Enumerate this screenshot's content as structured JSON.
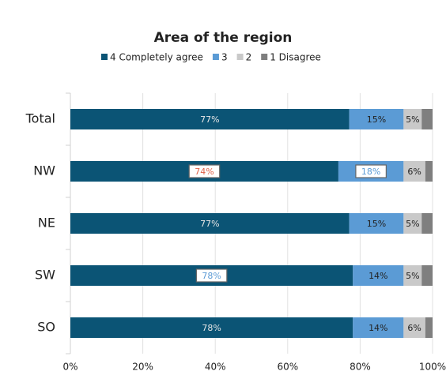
{
  "chart_data": {
    "type": "stacked-barh",
    "title": "Area of the region",
    "categories": [
      "Total",
      "NW",
      "NE",
      "SW",
      "SO"
    ],
    "series": [
      {
        "name": "4 Completely agree",
        "color": "#0b5475",
        "values": [
          77,
          74,
          77,
          78,
          78
        ],
        "value_labels": [
          "77%",
          "74%",
          "77%",
          "78%",
          "78%"
        ],
        "label_colors": [
          "#e6e6e6",
          "#e0624a",
          "#e6e6e6",
          "#5b9bd5",
          "#e6e6e6"
        ],
        "label_boxed": [
          false,
          true,
          false,
          true,
          false
        ]
      },
      {
        "name": "3",
        "color": "#5b9bd5",
        "values": [
          15,
          18,
          15,
          14,
          14
        ],
        "value_labels": [
          "15%",
          "18%",
          "15%",
          "14%",
          "14%"
        ],
        "label_colors": [
          "#222222",
          "#5b9bd5",
          "#222222",
          "#222222",
          "#222222"
        ],
        "label_boxed": [
          false,
          true,
          false,
          false,
          false
        ]
      },
      {
        "name": "2",
        "color": "#c9c9c9",
        "values": [
          5,
          6,
          5,
          5,
          6
        ],
        "value_labels": [
          "5%",
          "6%",
          "5%",
          "5%",
          "6%"
        ],
        "label_colors": [
          "#222222",
          "#222222",
          "#222222",
          "#222222",
          "#222222"
        ],
        "label_boxed": [
          false,
          false,
          false,
          false,
          false
        ]
      },
      {
        "name": "1 Disagree",
        "color": "#7f7f7f",
        "values": [
          3,
          2,
          3,
          3,
          2
        ]
      }
    ],
    "xlim": [
      0,
      100
    ],
    "xticks": [
      {
        "value": 0,
        "label": "0%"
      },
      {
        "value": 20,
        "label": "20%"
      },
      {
        "value": 40,
        "label": "40%"
      },
      {
        "value": 60,
        "label": "60%"
      },
      {
        "value": 80,
        "label": "80%"
      },
      {
        "value": 100,
        "label": "100%"
      }
    ],
    "grid": true,
    "legend": "top"
  }
}
